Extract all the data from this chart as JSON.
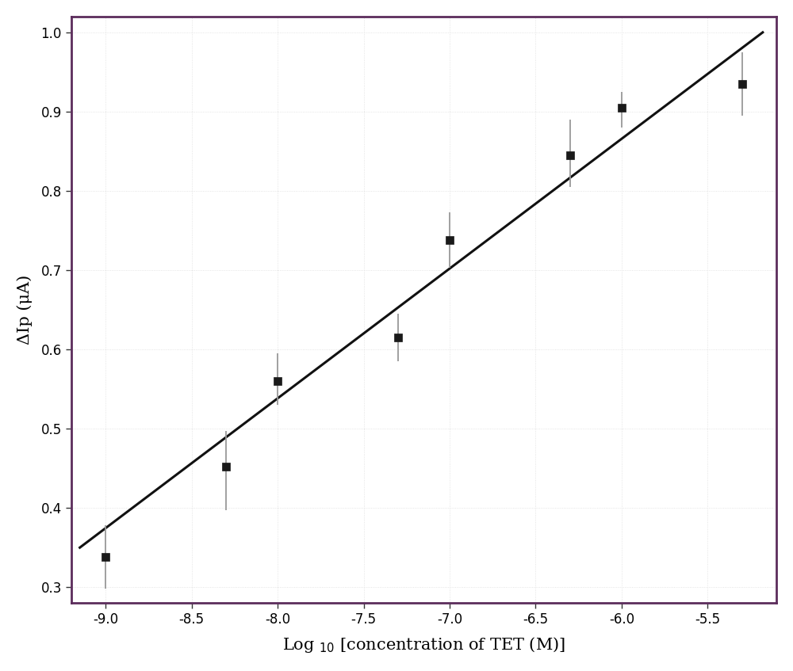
{
  "x_data": [
    -9.0,
    -8.3,
    -8.0,
    -7.3,
    -7.0,
    -6.3,
    -6.0,
    -5.3
  ],
  "y_data": [
    0.338,
    0.452,
    0.56,
    0.615,
    0.738,
    0.845,
    0.905,
    0.935
  ],
  "y_err_lower": [
    0.04,
    0.055,
    0.03,
    0.03,
    0.035,
    0.04,
    0.025,
    0.04
  ],
  "y_err_upper": [
    0.04,
    0.045,
    0.035,
    0.03,
    0.035,
    0.045,
    0.02,
    0.04
  ],
  "line_x": [
    -9.15,
    -5.18
  ],
  "line_y": [
    0.35,
    1.0
  ],
  "xlabel_main": "Log",
  "xlabel_sub": "10",
  "xlabel_rest": " [concentration of TET (M)]",
  "ylabel": "ΔIp (μA)",
  "xlim": [
    -9.2,
    -5.1
  ],
  "ylim": [
    0.28,
    1.02
  ],
  "xticks": [
    -9.0,
    -8.5,
    -8.0,
    -7.5,
    -7.0,
    -6.5,
    -6.0,
    -5.5
  ],
  "yticks": [
    0.3,
    0.4,
    0.5,
    0.6,
    0.7,
    0.8,
    0.9,
    1.0
  ],
  "marker_color": "#1a1a1a",
  "line_color": "#111111",
  "error_color": "#999999",
  "bg_color": "#ffffff",
  "border_color": "#5c2d5c",
  "grid_color": "#dddddd"
}
